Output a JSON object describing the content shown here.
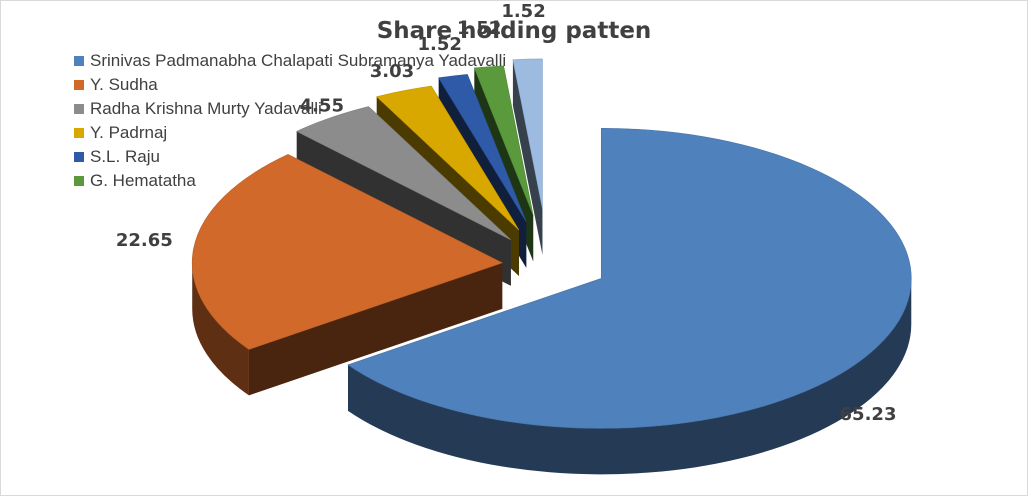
{
  "chart_data": {
    "type": "pie",
    "title": "Share holding patten",
    "categories": [
      "Srinivas Padmanabha Chalapati Subramanya Yadavalli",
      "Y. Sudha",
      "Radha Krishna Murty Yadavalli",
      "Y. Padrnaj",
      "S.L. Raju",
      "G. Hematatha",
      ""
    ],
    "legend_labels": [
      "Srinivas Padmanabha Chalapati Subramanya Yadavalli",
      "Y. Sudha",
      "Radha Krishna Murty Yadavalli",
      "Y. Padrnaj",
      "S.L. Raju",
      "G. Hematatha"
    ],
    "values": [
      65.23,
      22.65,
      4.55,
      3.03,
      1.52,
      1.52,
      1.52
    ],
    "value_labels": [
      "65.23",
      "22.65",
      "4.55",
      "3.03",
      "1.52",
      "1.52",
      "1.52"
    ],
    "colors": [
      "#4f81bd",
      "#d0692a",
      "#8c8c8c",
      "#d9a800",
      "#2f5aa8",
      "#5a9a3c",
      "#9dbbe0"
    ],
    "style": "3d-exploded",
    "legend_position": "top-left"
  }
}
